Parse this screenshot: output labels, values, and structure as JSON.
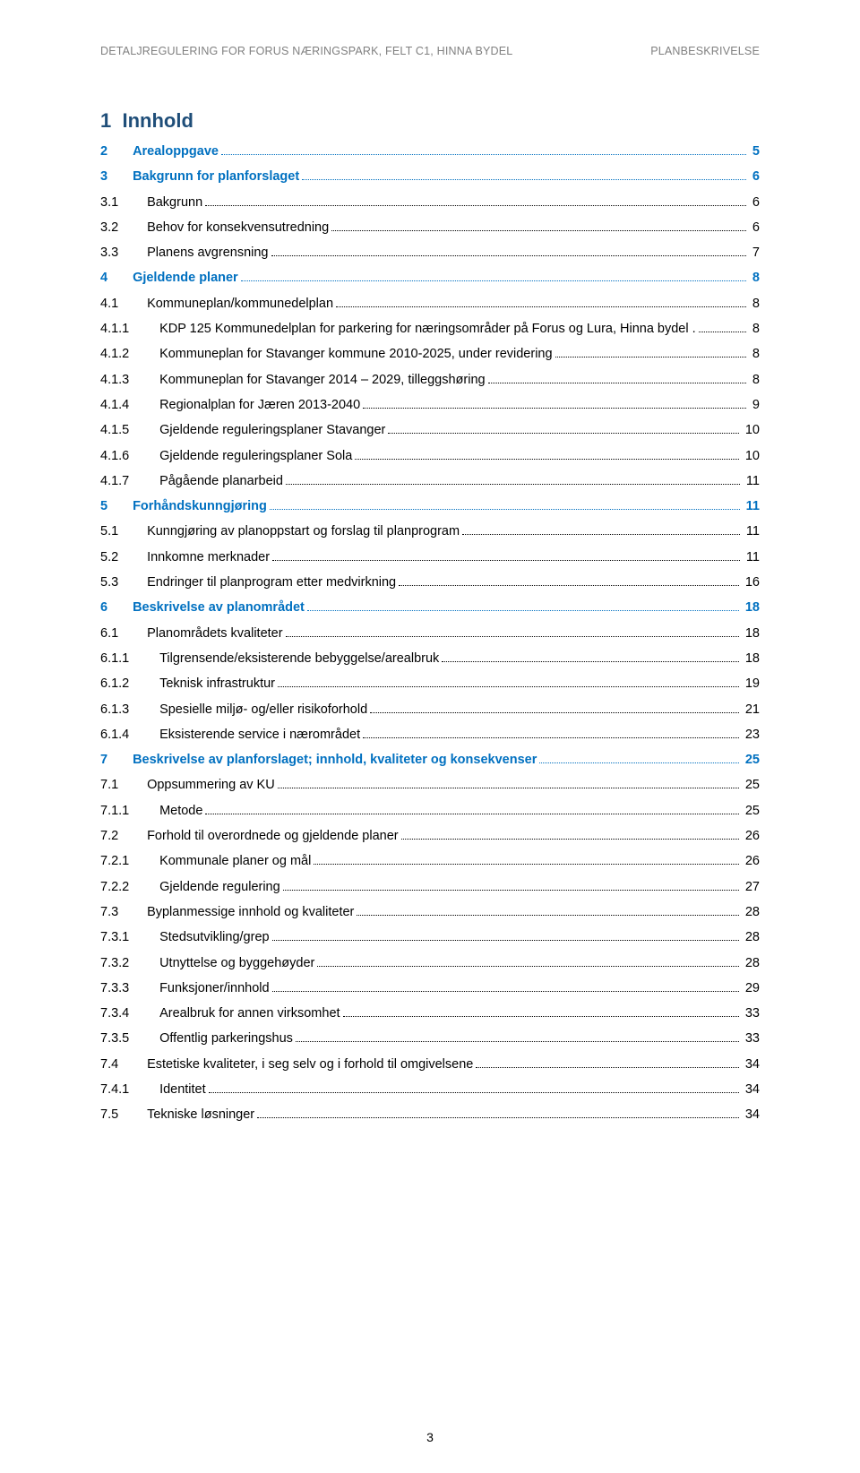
{
  "header": {
    "left": "DETALJREGULERING FOR FORUS NÆRINGSPARK, FELT C1, HINNA BYDEL",
    "right": "PLANBESKRIVELSE"
  },
  "colors": {
    "level1": "#0070c0",
    "heading": "#1f4e79",
    "body": "#000000",
    "header_gray": "#808080",
    "background": "#ffffff"
  },
  "typography": {
    "heading_fontsize_pt": 16,
    "toc_fontsize_pt": 11,
    "header_fontsize_pt": 9
  },
  "toc_heading": {
    "num": "1",
    "label": "Innhold"
  },
  "toc": [
    {
      "level": 1,
      "num": "2",
      "label": "Arealoppgave",
      "page": "5"
    },
    {
      "level": 1,
      "num": "3",
      "label": "Bakgrunn for planforslaget",
      "page": "6"
    },
    {
      "level": 2,
      "num": "3.1",
      "label": "Bakgrunn",
      "page": "6"
    },
    {
      "level": 2,
      "num": "3.2",
      "label": "Behov for konsekvensutredning",
      "page": "6"
    },
    {
      "level": 2,
      "num": "3.3",
      "label": "Planens avgrensning",
      "page": "7"
    },
    {
      "level": 1,
      "num": "4",
      "label": "Gjeldende planer",
      "page": "8"
    },
    {
      "level": 2,
      "num": "4.1",
      "label": "Kommuneplan/kommunedelplan",
      "page": "8"
    },
    {
      "level": 3,
      "num": "4.1.1",
      "label": "KDP 125 Kommunedelplan for parkering for næringsområder på Forus og Lura, Hinna bydel .",
      "page": "8"
    },
    {
      "level": 3,
      "num": "4.1.2",
      "label": "Kommuneplan for Stavanger kommune 2010-2025, under revidering",
      "page": "8"
    },
    {
      "level": 3,
      "num": "4.1.3",
      "label": "Kommuneplan for Stavanger 2014 – 2029, tilleggshøring",
      "page": "8"
    },
    {
      "level": 3,
      "num": "4.1.4",
      "label": "Regionalplan for Jæren 2013-2040",
      "page": "9"
    },
    {
      "level": 3,
      "num": "4.1.5",
      "label": "Gjeldende reguleringsplaner Stavanger",
      "page": "10"
    },
    {
      "level": 3,
      "num": "4.1.6",
      "label": "Gjeldende reguleringsplaner Sola",
      "page": "10"
    },
    {
      "level": 3,
      "num": "4.1.7",
      "label": "Pågående planarbeid",
      "page": "11"
    },
    {
      "level": 1,
      "num": "5",
      "label": "Forhåndskunngjøring",
      "page": "11"
    },
    {
      "level": 2,
      "num": "5.1",
      "label": "Kunngjøring av planoppstart og forslag til planprogram",
      "page": "11"
    },
    {
      "level": 2,
      "num": "5.2",
      "label": "Innkomne merknader",
      "page": "11"
    },
    {
      "level": 2,
      "num": "5.3",
      "label": "Endringer til planprogram etter medvirkning",
      "page": "16"
    },
    {
      "level": 1,
      "num": "6",
      "label": "Beskrivelse av planområdet",
      "page": "18"
    },
    {
      "level": 2,
      "num": "6.1",
      "label": "Planområdets kvaliteter",
      "page": "18"
    },
    {
      "level": 3,
      "num": "6.1.1",
      "label": "Tilgrensende/eksisterende bebyggelse/arealbruk",
      "page": "18"
    },
    {
      "level": 3,
      "num": "6.1.2",
      "label": "Teknisk infrastruktur",
      "page": "19"
    },
    {
      "level": 3,
      "num": "6.1.3",
      "label": "Spesielle miljø- og/eller risikoforhold",
      "page": "21"
    },
    {
      "level": 3,
      "num": "6.1.4",
      "label": "Eksisterende service i nærområdet",
      "page": "23"
    },
    {
      "level": 1,
      "num": "7",
      "label": "Beskrivelse av planforslaget; innhold, kvaliteter og konsekvenser",
      "page": "25"
    },
    {
      "level": 2,
      "num": "7.1",
      "label": "Oppsummering av KU",
      "page": "25"
    },
    {
      "level": 3,
      "num": "7.1.1",
      "label": "Metode",
      "page": "25"
    },
    {
      "level": 2,
      "num": "7.2",
      "label": "Forhold til overordnede og gjeldende planer",
      "page": "26"
    },
    {
      "level": 3,
      "num": "7.2.1",
      "label": "Kommunale planer og mål",
      "page": "26"
    },
    {
      "level": 3,
      "num": "7.2.2",
      "label": "Gjeldende regulering",
      "page": "27"
    },
    {
      "level": 2,
      "num": "7.3",
      "label": "Byplanmessige innhold og kvaliteter",
      "page": "28"
    },
    {
      "level": 3,
      "num": "7.3.1",
      "label": "Stedsutvikling/grep",
      "page": "28"
    },
    {
      "level": 3,
      "num": "7.3.2",
      "label": "Utnyttelse og byggehøyder",
      "page": "28"
    },
    {
      "level": 3,
      "num": "7.3.3",
      "label": "Funksjoner/innhold",
      "page": "29"
    },
    {
      "level": 3,
      "num": "7.3.4",
      "label": "Arealbruk for annen virksomhet",
      "page": "33"
    },
    {
      "level": 3,
      "num": "7.3.5",
      "label": "Offentlig parkeringshus",
      "page": "33"
    },
    {
      "level": 2,
      "num": "7.4",
      "label": "Estetiske kvaliteter, i seg selv og i forhold til omgivelsene",
      "page": "34"
    },
    {
      "level": 3,
      "num": "7.4.1",
      "label": "Identitet",
      "page": "34"
    },
    {
      "level": 2,
      "num": "7.5",
      "label": "Tekniske løsninger",
      "page": "34"
    }
  ],
  "footer_page_number": "3"
}
